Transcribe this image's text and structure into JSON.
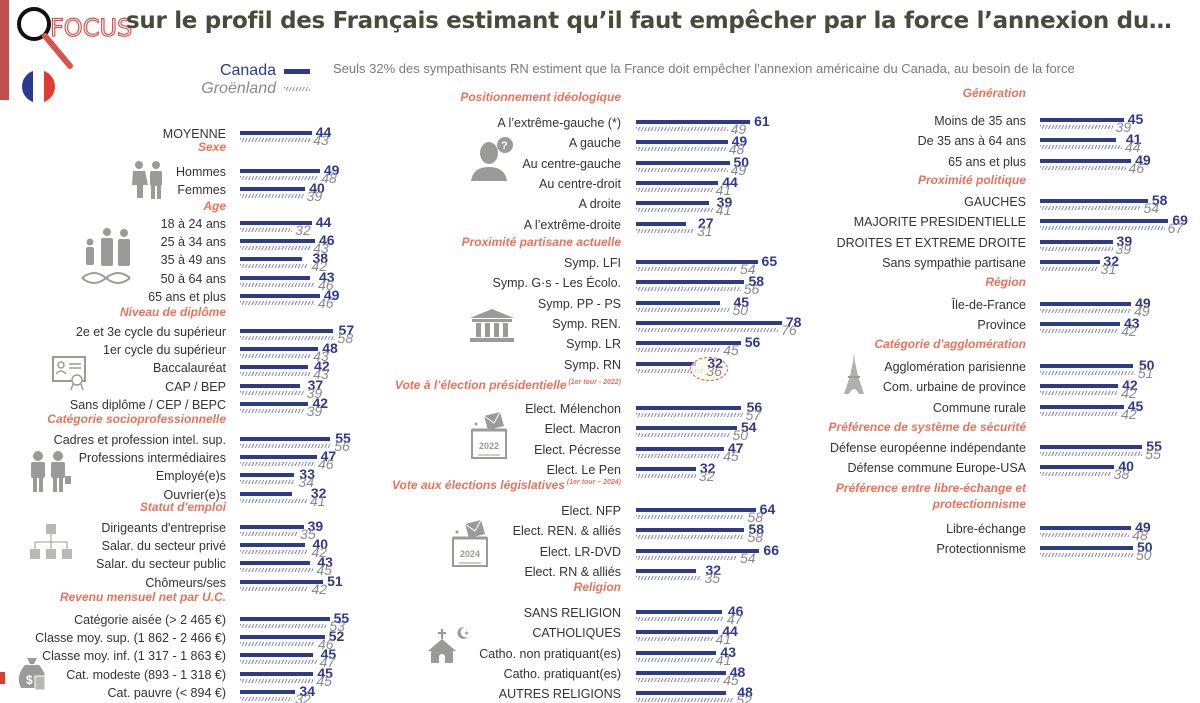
{
  "header": {
    "logo_text": "FOCUS",
    "title": "sur le profil des Français estimant qu’il faut empêcher par la force l’annexion du…",
    "subtitle": "Seuls 32% des sympathisants RN estiment que la France doit empêcher l'annexion américaine du Canada, au besoin de la force"
  },
  "legend": {
    "canada": "Canada",
    "groenland": "Groënland"
  },
  "colors": {
    "canada": "#2e3a8c",
    "groenland": "#8a8a8a",
    "section": "#e8735a",
    "accent_red": "#c0504d"
  },
  "chart_data": {
    "type": "bar",
    "orientation": "horizontal",
    "title": "sur le profil des Français estimant qu’il faut empêcher par la force l’annexion du…",
    "series": [
      {
        "name": "Canada",
        "style": "solid"
      },
      {
        "name": "Groënland",
        "style": "hatched"
      }
    ],
    "unit": "%",
    "columns": [
      {
        "sections": [
          {
            "title": "",
            "icon": "",
            "rows": [
              {
                "label": "MOYENNE",
                "canada": 44,
                "groenland": 43
              }
            ]
          },
          {
            "title": "Sexe",
            "icon": "man-woman-icon",
            "rows": [
              {
                "label": "Hommes",
                "canada": 49,
                "groenland": 48
              },
              {
                "label": "Femmes",
                "canada": 40,
                "groenland": 39
              }
            ]
          },
          {
            "title": "Age",
            "icon": "family-dna-icon",
            "rows": [
              {
                "label": "18 à 24 ans",
                "canada": 44,
                "groenland": 32
              },
              {
                "label": "25 à 34 ans",
                "canada": 46,
                "groenland": 43
              },
              {
                "label": "35 à 49 ans",
                "canada": 38,
                "groenland": 42
              },
              {
                "label": "50 à 64 ans",
                "canada": 43,
                "groenland": 46
              },
              {
                "label": "65 ans et plus",
                "canada": 49,
                "groenland": 46
              }
            ]
          },
          {
            "title": "Niveau de diplôme",
            "icon": "diploma-icon",
            "rows": [
              {
                "label": "2e et 3e cycle du supérieur",
                "canada": 57,
                "groenland": 58
              },
              {
                "label": "1er cycle du supérieur",
                "canada": 48,
                "groenland": 43
              },
              {
                "label": "Baccalauréat",
                "canada": 42,
                "groenland": 43
              },
              {
                "label": "CAP / BEP",
                "canada": 37,
                "groenland": 39
              },
              {
                "label": "Sans diplôme / CEP / BEPC",
                "canada": 42,
                "groenland": 39
              }
            ]
          },
          {
            "title": "Catégorie socioprofessionnelle",
            "icon": "workers-icon",
            "rows": [
              {
                "label": "Cadres et profession intel. sup.",
                "canada": 55,
                "groenland": 56
              },
              {
                "label": "Professions intermédiaires",
                "canada": 47,
                "groenland": 46
              },
              {
                "label": "Employé(e)s",
                "canada": 33,
                "groenland": 34
              },
              {
                "label": "Ouvrier(e)s",
                "canada": 32,
                "groenland": 41
              }
            ]
          },
          {
            "title": "Statut d'emploi",
            "icon": "org-chart-icon",
            "rows": [
              {
                "label": "Dirigeants d'entreprise",
                "canada": 39,
                "groenland": 35
              },
              {
                "label": "Salar. du secteur privé",
                "canada": 40,
                "groenland": 42
              },
              {
                "label": "Salar. du secteur public",
                "canada": 43,
                "groenland": 45
              },
              {
                "label": "Chômeurs/ses",
                "canada": 51,
                "groenland": 42
              }
            ]
          },
          {
            "title": "Revenu mensuel net par U.C.",
            "icon": "money-bag-icon",
            "rows": [
              {
                "label": "Catégorie aisée (> 2 465 €)",
                "canada": 55,
                "groenland": 53
              },
              {
                "label": "Classe moy. sup. (1 862 - 2 466 €)",
                "canada": 52,
                "groenland": 46
              },
              {
                "label": "Classe moy. inf. (1 317 - 1 863 €)",
                "canada": 45,
                "groenland": 47
              },
              {
                "label": "Cat. modeste (893 - 1 318 €)",
                "canada": 45,
                "groenland": 45
              },
              {
                "label": "Cat. pauvre (< 894 €)",
                "canada": 34,
                "groenland": 32
              }
            ]
          }
        ]
      },
      {
        "sections": [
          {
            "title": "Positionnement idéologique",
            "icon": "person-question-icon",
            "rows": [
              {
                "label": "A l’extrême-gauche (*)",
                "canada": 61,
                "groenland": 49
              },
              {
                "label": "A gauche",
                "canada": 49,
                "groenland": 48
              },
              {
                "label": "Au centre-gauche",
                "canada": 50,
                "groenland": 49
              },
              {
                "label": "Au centre-droit",
                "canada": 44,
                "groenland": 41
              },
              {
                "label": "A droite",
                "canada": 39,
                "groenland": 41
              },
              {
                "label": "A l’extrême-droite",
                "canada": 27,
                "groenland": 31
              }
            ]
          },
          {
            "title": "Proximité partisane actuelle",
            "icon": "parliament-icon",
            "rows": [
              {
                "label": "Symp. LFI",
                "canada": 65,
                "groenland": 54
              },
              {
                "label": "Symp. G·s - Les Écolo.",
                "canada": 58,
                "groenland": 56
              },
              {
                "label": "Symp. PP - PS",
                "canada": 45,
                "groenland": 50
              },
              {
                "label": "Symp. REN.",
                "canada": 78,
                "groenland": 76
              },
              {
                "label": "Symp. LR",
                "canada": 56,
                "groenland": 45
              },
              {
                "label": "Symp. RN",
                "canada": 32,
                "groenland": 36,
                "highlight": true
              }
            ]
          },
          {
            "title": "Vote à l’élection présidentielle",
            "title_note": "(1er tour - 2022)",
            "icon": "ballot-box-2022-icon",
            "icon_text": "2022",
            "rows": [
              {
                "label": "Elect. Mélenchon",
                "canada": 56,
                "groenland": 57
              },
              {
                "label": "Elect. Macron",
                "canada": 54,
                "groenland": 50
              },
              {
                "label": "Elect. Pécresse",
                "canada": 47,
                "groenland": 45
              },
              {
                "label": "Elect. Le Pen",
                "canada": 32,
                "groenland": 32
              }
            ]
          },
          {
            "title": "Vote aux élections législatives",
            "title_note": "(1er tour – 2024)",
            "icon": "ballot-box-2024-icon",
            "icon_text": "2024",
            "rows": [
              {
                "label": "Elect. NFP",
                "canada": 64,
                "groenland": 58
              },
              {
                "label": "Elect. REN. & alliés",
                "canada": 58,
                "groenland": 58
              },
              {
                "label": "Elect. LR-DVD",
                "canada": 66,
                "groenland": 54
              },
              {
                "label": "Elect. RN & alliés",
                "canada": 32,
                "groenland": 35
              }
            ]
          },
          {
            "title": "Religion",
            "icon": "church-crescent-icon",
            "rows": [
              {
                "label": "SANS RELIGION",
                "canada": 46,
                "groenland": 47
              },
              {
                "label": "CATHOLIQUES",
                "canada": 44,
                "groenland": 41
              },
              {
                "label": "Catho. non pratiquant(es)",
                "canada": 43,
                "groenland": 41
              },
              {
                "label": "Catho. pratiquant(es)",
                "canada": 48,
                "groenland": 45
              },
              {
                "label": "AUTRES RELIGIONS",
                "canada": 48,
                "groenland": 52
              }
            ]
          }
        ]
      },
      {
        "sections": [
          {
            "title": "Génération",
            "icon": "",
            "rows": [
              {
                "label": "Moins de 35 ans",
                "canada": 45,
                "groenland": 39
              },
              {
                "label": "De 35 ans à 64 ans",
                "canada": 41,
                "groenland": 44
              },
              {
                "label": "65 ans et plus",
                "canada": 49,
                "groenland": 46
              }
            ]
          },
          {
            "title": "Proximité politique",
            "icon": "",
            "rows": [
              {
                "label": "GAUCHES",
                "canada": 58,
                "groenland": 54
              },
              {
                "label": "MAJORITE PRESIDENTIELLE",
                "canada": 69,
                "groenland": 67
              },
              {
                "label": "DROITES ET EXTREME DROITE",
                "canada": 39,
                "groenland": 39
              },
              {
                "label": "Sans sympathie partisane",
                "canada": 32,
                "groenland": 31
              }
            ]
          },
          {
            "title": "Région",
            "icon": "",
            "rows": [
              {
                "label": "Île-de-France",
                "canada": 49,
                "groenland": 49
              },
              {
                "label": "Province",
                "canada": 43,
                "groenland": 42
              }
            ]
          },
          {
            "title": "Catégorie d'agglomération",
            "icon": "eiffel-tower-icon",
            "rows": [
              {
                "label": "Agglomération parisienne",
                "canada": 50,
                "groenland": 51
              },
              {
                "label": "Com. urbaine de province",
                "canada": 42,
                "groenland": 42
              },
              {
                "label": "Commune rurale",
                "canada": 45,
                "groenland": 42
              }
            ]
          },
          {
            "title": "Préférence de système de sécurité",
            "icon": "",
            "rows": [
              {
                "label": "Défense européenne indépendante",
                "canada": 55,
                "groenland": 55
              },
              {
                "label": "Défense commune Europe-USA",
                "canada": 40,
                "groenland": 38
              }
            ]
          },
          {
            "title": "Préférence entre libre-échange et protectionnisme",
            "title_lines": [
              "Préférence entre libre-échange et",
              "protectionnisme"
            ],
            "icon": "",
            "rows": [
              {
                "label": "Libre-échange",
                "canada": 49,
                "groenland": 48
              },
              {
                "label": "Protectionnisme",
                "canada": 50,
                "groenland": 50
              }
            ]
          }
        ]
      }
    ]
  }
}
